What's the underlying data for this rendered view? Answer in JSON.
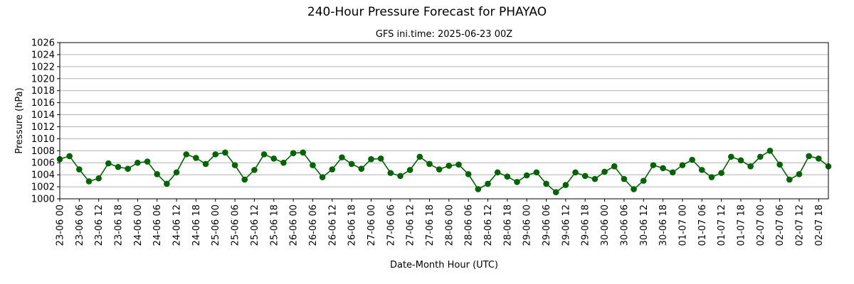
{
  "chart_data": {
    "type": "line",
    "title": "240-Hour Pressure Forecast for PHAYAO",
    "subtitle": "GFS ini.time: 2025-06-23 00Z",
    "xlabel": "Date-Month Hour (UTC)",
    "ylabel": "Pressure (hPa)",
    "ylim": [
      1000,
      1026
    ],
    "yticks": [
      1000,
      1002,
      1004,
      1006,
      1008,
      1010,
      1012,
      1014,
      1016,
      1018,
      1020,
      1022,
      1024,
      1026
    ],
    "xtick_labels": [
      "23-06 00",
      "23-06 06",
      "23-06 12",
      "23-06 18",
      "24-06 00",
      "24-06 06",
      "24-06 12",
      "24-06 18",
      "25-06 00",
      "25-06 06",
      "25-06 12",
      "25-06 18",
      "26-06 00",
      "26-06 06",
      "26-06 12",
      "26-06 18",
      "27-06 00",
      "27-06 06",
      "27-06 12",
      "27-06 18",
      "28-06 00",
      "28-06 06",
      "28-06 12",
      "28-06 18",
      "29-06 00",
      "29-06 06",
      "29-06 12",
      "29-06 18",
      "30-06 00",
      "30-06 06",
      "30-06 12",
      "30-06 18",
      "01-07 00",
      "01-07 06",
      "01-07 12",
      "01-07 18",
      "02-07 00",
      "02-07 06",
      "02-07 12",
      "02-07 18"
    ],
    "x_step_hours": 3,
    "grid": "horizontal",
    "line_color": "#006400",
    "marker_color": "#006400",
    "series": [
      {
        "values": [
          1006.6,
          1007.1,
          1004.9,
          1002.9,
          1003.4,
          1005.9,
          1005.3,
          1005.0,
          1006.0,
          1006.2,
          1004.1,
          1002.5,
          1004.4,
          1007.4,
          1006.8,
          1005.8,
          1007.4,
          1007.7,
          1005.6,
          1003.2,
          1004.8,
          1007.4,
          1006.7,
          1006.0,
          1007.6,
          1007.7,
          1005.6,
          1003.6,
          1004.9,
          1006.9,
          1005.8,
          1005.0,
          1006.6,
          1006.7,
          1004.3,
          1003.8,
          1004.8,
          1007.0,
          1005.8,
          1004.9,
          1005.5,
          1005.7,
          1004.1,
          1001.6,
          1002.5,
          1004.4,
          1003.7,
          1002.8,
          1003.9,
          1004.4,
          1002.5,
          1001.1,
          1002.3,
          1004.4,
          1003.8,
          1003.3,
          1004.5,
          1005.4,
          1003.3,
          1001.6,
          1003.0,
          1005.6,
          1005.1,
          1004.4,
          1005.6,
          1006.5,
          1004.8,
          1003.6,
          1004.3,
          1007.0,
          1006.4,
          1005.4,
          1007.0,
          1008.0,
          1005.7,
          1003.2,
          1004.1,
          1007.1,
          1006.7,
          1005.4
        ]
      }
    ]
  }
}
